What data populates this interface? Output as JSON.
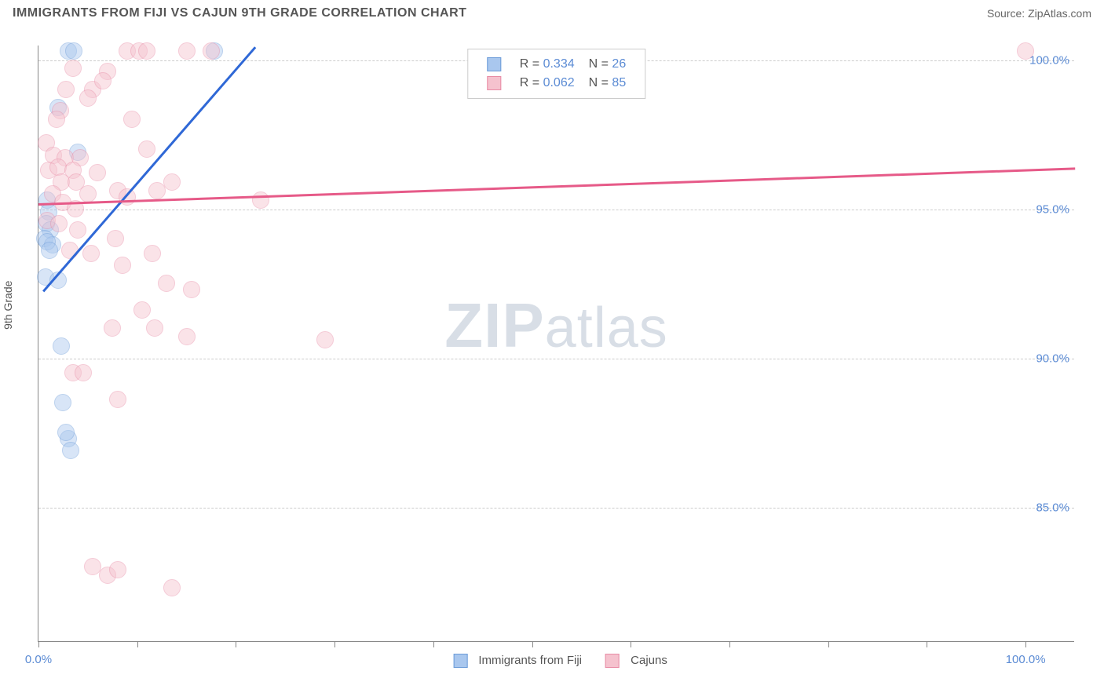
{
  "header": {
    "title": "IMMIGRANTS FROM FIJI VS CAJUN 9TH GRADE CORRELATION CHART",
    "source": "Source: ZipAtlas.com"
  },
  "chart": {
    "type": "scatter",
    "ylabel": "9th Grade",
    "xlim": [
      0,
      105
    ],
    "ylim": [
      80.5,
      100.5
    ],
    "yticks": [
      {
        "value": 85.0,
        "label": "85.0%"
      },
      {
        "value": 90.0,
        "label": "90.0%"
      },
      {
        "value": 95.0,
        "label": "95.0%"
      },
      {
        "value": 100.0,
        "label": "100.0%"
      }
    ],
    "xticks": [
      0,
      10,
      20,
      30,
      40,
      50,
      60,
      70,
      80,
      90,
      100
    ],
    "xlabels": [
      {
        "value": 0,
        "label": "0.0%"
      },
      {
        "value": 100,
        "label": "100.0%"
      }
    ],
    "background_color": "#ffffff",
    "grid_color": "#cccccc",
    "marker_radius": 11,
    "marker_opacity": 0.45,
    "series": [
      {
        "name": "Immigrants from Fiji",
        "color_fill": "#a9c7ee",
        "color_stroke": "#6b9bd8",
        "trend_color": "#2f68d6",
        "trend_width": 2.5,
        "R": "0.334",
        "N": "26",
        "trend": {
          "x1": 0.5,
          "y1": 92.3,
          "x2": 22,
          "y2": 100.5
        },
        "points": [
          {
            "x": 3.0,
            "y": 100.3
          },
          {
            "x": 3.6,
            "y": 100.3
          },
          {
            "x": 17.8,
            "y": 100.3
          },
          {
            "x": 2.0,
            "y": 98.4
          },
          {
            "x": 4.0,
            "y": 96.9
          },
          {
            "x": 0.9,
            "y": 95.3
          },
          {
            "x": 1.0,
            "y": 94.9
          },
          {
            "x": 0.8,
            "y": 94.5
          },
          {
            "x": 1.2,
            "y": 94.3
          },
          {
            "x": 0.6,
            "y": 94.0
          },
          {
            "x": 1.4,
            "y": 93.8
          },
          {
            "x": 0.9,
            "y": 93.9
          },
          {
            "x": 1.1,
            "y": 93.6
          },
          {
            "x": 0.7,
            "y": 92.7
          },
          {
            "x": 2.0,
            "y": 92.6
          },
          {
            "x": 2.3,
            "y": 90.4
          },
          {
            "x": 2.5,
            "y": 88.5
          },
          {
            "x": 3.0,
            "y": 87.3
          },
          {
            "x": 2.8,
            "y": 87.5
          },
          {
            "x": 3.3,
            "y": 86.9
          }
        ]
      },
      {
        "name": "Cajuns",
        "color_fill": "#f5c2ce",
        "color_stroke": "#e88ba5",
        "trend_color": "#e65a88",
        "trend_width": 2.5,
        "R": "0.062",
        "N": "85",
        "trend": {
          "x1": 0,
          "y1": 95.2,
          "x2": 105,
          "y2": 96.4
        },
        "points": [
          {
            "x": 100,
            "y": 100.3
          },
          {
            "x": 9.0,
            "y": 100.3
          },
          {
            "x": 10.2,
            "y": 100.3
          },
          {
            "x": 11.0,
            "y": 100.3
          },
          {
            "x": 15.0,
            "y": 100.3
          },
          {
            "x": 17.5,
            "y": 100.3
          },
          {
            "x": 3.5,
            "y": 99.7
          },
          {
            "x": 7.0,
            "y": 99.6
          },
          {
            "x": 2.8,
            "y": 99.0
          },
          {
            "x": 5.5,
            "y": 99.0
          },
          {
            "x": 5.0,
            "y": 98.7
          },
          {
            "x": 2.2,
            "y": 98.3
          },
          {
            "x": 6.5,
            "y": 99.3
          },
          {
            "x": 1.8,
            "y": 98.0
          },
          {
            "x": 9.5,
            "y": 98.0
          },
          {
            "x": 0.8,
            "y": 97.2
          },
          {
            "x": 11.0,
            "y": 97.0
          },
          {
            "x": 1.5,
            "y": 96.8
          },
          {
            "x": 2.7,
            "y": 96.7
          },
          {
            "x": 4.2,
            "y": 96.7
          },
          {
            "x": 1.0,
            "y": 96.3
          },
          {
            "x": 2.0,
            "y": 96.4
          },
          {
            "x": 3.5,
            "y": 96.3
          },
          {
            "x": 6.0,
            "y": 96.2
          },
          {
            "x": 2.3,
            "y": 95.9
          },
          {
            "x": 3.8,
            "y": 95.9
          },
          {
            "x": 13.5,
            "y": 95.9
          },
          {
            "x": 1.4,
            "y": 95.5
          },
          {
            "x": 5.0,
            "y": 95.5
          },
          {
            "x": 8.0,
            "y": 95.6
          },
          {
            "x": 9.0,
            "y": 95.4
          },
          {
            "x": 12.0,
            "y": 95.6
          },
          {
            "x": 22.5,
            "y": 95.3
          },
          {
            "x": 2.5,
            "y": 95.2
          },
          {
            "x": 3.7,
            "y": 95.0
          },
          {
            "x": 0.9,
            "y": 94.6
          },
          {
            "x": 2.1,
            "y": 94.5
          },
          {
            "x": 4.0,
            "y": 94.3
          },
          {
            "x": 3.2,
            "y": 93.6
          },
          {
            "x": 5.3,
            "y": 93.5
          },
          {
            "x": 7.8,
            "y": 94.0
          },
          {
            "x": 11.5,
            "y": 93.5
          },
          {
            "x": 8.5,
            "y": 93.1
          },
          {
            "x": 13.0,
            "y": 92.5
          },
          {
            "x": 15.5,
            "y": 92.3
          },
          {
            "x": 10.5,
            "y": 91.6
          },
          {
            "x": 7.5,
            "y": 91.0
          },
          {
            "x": 11.8,
            "y": 91.0
          },
          {
            "x": 15.0,
            "y": 90.7
          },
          {
            "x": 29.0,
            "y": 90.6
          },
          {
            "x": 3.5,
            "y": 89.5
          },
          {
            "x": 4.5,
            "y": 89.5
          },
          {
            "x": 8.0,
            "y": 88.6
          },
          {
            "x": 5.5,
            "y": 83.0
          },
          {
            "x": 7.0,
            "y": 82.7
          },
          {
            "x": 8.0,
            "y": 82.9
          },
          {
            "x": 13.5,
            "y": 82.3
          }
        ]
      }
    ],
    "legend_bottom": [
      {
        "label": "Immigrants from Fiji",
        "fill": "#a9c7ee",
        "stroke": "#6b9bd8"
      },
      {
        "label": "Cajuns",
        "fill": "#f5c2ce",
        "stroke": "#e88ba5"
      }
    ],
    "legend_top_labels": {
      "r": "R =",
      "n": "N ="
    }
  },
  "watermark": {
    "prefix": "ZIP",
    "suffix": "atlas"
  }
}
